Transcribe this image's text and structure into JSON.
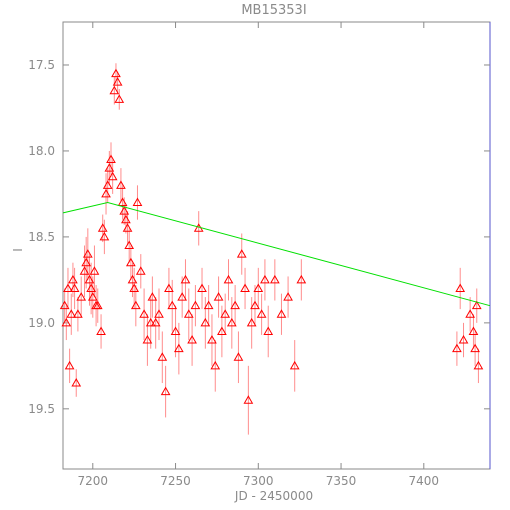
{
  "chart_data": {
    "type": "scatter",
    "title": "MB15353I",
    "xlabel": "JD - 2450000",
    "ylabel": "I",
    "xlim": [
      7182,
      7440
    ],
    "ylim": [
      19.85,
      17.25
    ],
    "y_inverted": true,
    "x_ticks": [
      7200,
      7250,
      7300,
      7350,
      7400
    ],
    "y_ticks": [
      17.5,
      18.0,
      18.5,
      19.0,
      19.5
    ],
    "grid": false,
    "colors": {
      "points": "#ff0000",
      "errorbars": "#ff8c8c",
      "model": "#00e000",
      "axes": "#8a8a8a",
      "frame_right": "#5555cc"
    },
    "model_line": {
      "name": "",
      "x": [
        7182,
        7209,
        7440
      ],
      "y": [
        18.36,
        18.3,
        18.9
      ]
    },
    "series": [
      {
        "name": "",
        "marker": "triangle",
        "points": [
          [
            7183,
            18.9,
            0.1
          ],
          [
            7184,
            19.0,
            0.1
          ],
          [
            7185,
            18.8,
            0.12
          ],
          [
            7186,
            19.25,
            0.1
          ],
          [
            7187,
            18.95,
            0.12
          ],
          [
            7188,
            18.75,
            0.1
          ],
          [
            7189,
            18.8,
            0.12
          ],
          [
            7190,
            19.35,
            0.08
          ],
          [
            7191,
            18.95,
            0.1
          ],
          [
            7193,
            18.85,
            0.12
          ],
          [
            7195,
            18.7,
            0.15
          ],
          [
            7196,
            18.65,
            0.15
          ],
          [
            7197,
            18.6,
            0.15
          ],
          [
            7198,
            18.75,
            0.15
          ],
          [
            7199,
            18.8,
            0.15
          ],
          [
            7200,
            18.85,
            0.12
          ],
          [
            7201,
            18.7,
            0.15
          ],
          [
            7202,
            18.9,
            0.12
          ],
          [
            7203,
            18.9,
            0.1
          ],
          [
            7205,
            19.05,
            0.1
          ],
          [
            7206,
            18.45,
            0.08
          ],
          [
            7207,
            18.5,
            0.1
          ],
          [
            7208,
            18.25,
            0.12
          ],
          [
            7209,
            18.2,
            0.1
          ],
          [
            7210,
            18.1,
            0.1
          ],
          [
            7211,
            18.05,
            0.1
          ],
          [
            7212,
            18.15,
            0.1
          ],
          [
            7213,
            17.65,
            0.08
          ],
          [
            7214,
            17.55,
            0.06
          ],
          [
            7215,
            17.6,
            0.06
          ],
          [
            7216,
            17.7,
            0.06
          ],
          [
            7217,
            18.2,
            0.1
          ],
          [
            7218,
            18.3,
            0.1
          ],
          [
            7219,
            18.35,
            0.08
          ],
          [
            7220,
            18.4,
            0.08
          ],
          [
            7221,
            18.45,
            0.1
          ],
          [
            7222,
            18.55,
            0.1
          ],
          [
            7223,
            18.65,
            0.1
          ],
          [
            7224,
            18.75,
            0.1
          ],
          [
            7225,
            18.8,
            0.12
          ],
          [
            7226,
            18.9,
            0.12
          ],
          [
            7227,
            18.3,
            0.1
          ],
          [
            7229,
            18.7,
            0.1
          ],
          [
            7231,
            18.95,
            0.15
          ],
          [
            7233,
            19.1,
            0.15
          ],
          [
            7235,
            19.0,
            0.15
          ],
          [
            7236,
            18.85,
            0.12
          ],
          [
            7238,
            19.0,
            0.15
          ],
          [
            7240,
            18.95,
            0.15
          ],
          [
            7242,
            19.2,
            0.15
          ],
          [
            7244,
            19.4,
            0.15
          ],
          [
            7246,
            18.8,
            0.12
          ],
          [
            7248,
            18.9,
            0.15
          ],
          [
            7250,
            19.05,
            0.15
          ],
          [
            7252,
            19.15,
            0.15
          ],
          [
            7254,
            18.85,
            0.12
          ],
          [
            7256,
            18.75,
            0.12
          ],
          [
            7258,
            18.95,
            0.15
          ],
          [
            7260,
            19.1,
            0.15
          ],
          [
            7262,
            18.9,
            0.12
          ],
          [
            7264,
            18.45,
            0.1
          ],
          [
            7266,
            18.8,
            0.12
          ],
          [
            7268,
            19.0,
            0.15
          ],
          [
            7270,
            18.9,
            0.12
          ],
          [
            7272,
            19.1,
            0.15
          ],
          [
            7274,
            19.25,
            0.15
          ],
          [
            7276,
            18.85,
            0.12
          ],
          [
            7278,
            19.05,
            0.15
          ],
          [
            7280,
            18.95,
            0.12
          ],
          [
            7282,
            18.75,
            0.12
          ],
          [
            7284,
            19.0,
            0.15
          ],
          [
            7286,
            18.9,
            0.12
          ],
          [
            7288,
            19.2,
            0.15
          ],
          [
            7290,
            18.6,
            0.12
          ],
          [
            7292,
            18.8,
            0.12
          ],
          [
            7294,
            19.45,
            0.2
          ],
          [
            7296,
            19.0,
            0.15
          ],
          [
            7298,
            18.9,
            0.12
          ],
          [
            7300,
            18.8,
            0.12
          ],
          [
            7302,
            18.95,
            0.12
          ],
          [
            7304,
            18.75,
            0.12
          ],
          [
            7306,
            19.05,
            0.15
          ],
          [
            7310,
            18.75,
            0.12
          ],
          [
            7314,
            18.95,
            0.12
          ],
          [
            7318,
            18.85,
            0.12
          ],
          [
            7322,
            19.25,
            0.15
          ],
          [
            7326,
            18.75,
            0.12
          ],
          [
            7420,
            19.15,
            0.1
          ],
          [
            7422,
            18.8,
            0.12
          ],
          [
            7424,
            19.1,
            0.1
          ],
          [
            7428,
            18.95,
            0.1
          ],
          [
            7430,
            19.05,
            0.1
          ],
          [
            7431,
            19.15,
            0.1
          ],
          [
            7432,
            18.9,
            0.1
          ],
          [
            7433,
            19.25,
            0.1
          ]
        ]
      }
    ]
  }
}
